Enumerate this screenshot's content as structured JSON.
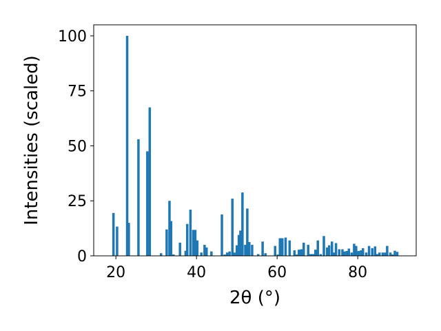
{
  "chart_data": {
    "type": "bar",
    "xlabel": "2θ (°)",
    "ylabel": "Intensities (scaled)",
    "xlim": [
      14.5,
      94.5
    ],
    "ylim": [
      0,
      105
    ],
    "xticks": [
      20,
      40,
      60,
      80
    ],
    "yticks": [
      0,
      25,
      50,
      75,
      100
    ],
    "bar_width_deg": 0.6,
    "grid": false,
    "color": "#1f77b4",
    "x": [
      19.4,
      20.3,
      22.8,
      23.2,
      25.6,
      27.8,
      28.4,
      31.2,
      32.6,
      33.3,
      33.7,
      34.3,
      35.9,
      37.3,
      37.7,
      38.5,
      39.2,
      39.7,
      40.2,
      41.2,
      42.0,
      42.5,
      43.7,
      46.3,
      47.0,
      47.6,
      48.2,
      48.9,
      49.4,
      50.0,
      50.5,
      50.9,
      51.4,
      52.1,
      52.6,
      53.1,
      53.8,
      55.3,
      56.4,
      57.1,
      59.5,
      60.2,
      60.7,
      61.3,
      62.1,
      63.1,
      64.3,
      64.9,
      65.4,
      66.0,
      66.6,
      67.7,
      68.3,
      68.9,
      69.5,
      70.1,
      70.8,
      71.6,
      72.4,
      72.9,
      73.6,
      74.1,
      74.6,
      75.4,
      76.2,
      76.7,
      77.3,
      77.8,
      78.5,
      79.1,
      79.6,
      80.2,
      80.8,
      81.3,
      82.1,
      82.8,
      83.6,
      84.3,
      84.8,
      85.4,
      86.2,
      86.8,
      87.3,
      88.1,
      88.6,
      89.2,
      89.8
    ],
    "values": [
      19.5,
      13.3,
      100,
      15.0,
      53.0,
      47.5,
      67.5,
      1.2,
      12.0,
      25.0,
      15.8,
      0.6,
      6.0,
      2.3,
      14.5,
      21.0,
      11.8,
      11.8,
      7.0,
      1.5,
      5.0,
      3.8,
      2.0,
      18.8,
      0.6,
      1.5,
      2.0,
      26.0,
      1.5,
      4.8,
      9.5,
      11.5,
      28.8,
      5.0,
      21.5,
      6.3,
      5.0,
      0.8,
      6.5,
      1.2,
      4.5,
      0.6,
      8.0,
      8.0,
      8.3,
      7.0,
      2.5,
      0.6,
      2.8,
      3.0,
      6.0,
      5.0,
      0.8,
      0.8,
      2.8,
      7.0,
      0.8,
      9.0,
      3.8,
      4.8,
      6.5,
      1.5,
      5.8,
      3.0,
      3.0,
      2.0,
      2.2,
      3.3,
      1.5,
      5.5,
      4.5,
      2.2,
      2.5,
      3.5,
      1.5,
      4.5,
      3.5,
      4.3,
      0.8,
      1.5,
      1.5,
      1.5,
      4.5,
      1.5,
      0.6,
      2.3,
      1.8
    ]
  }
}
